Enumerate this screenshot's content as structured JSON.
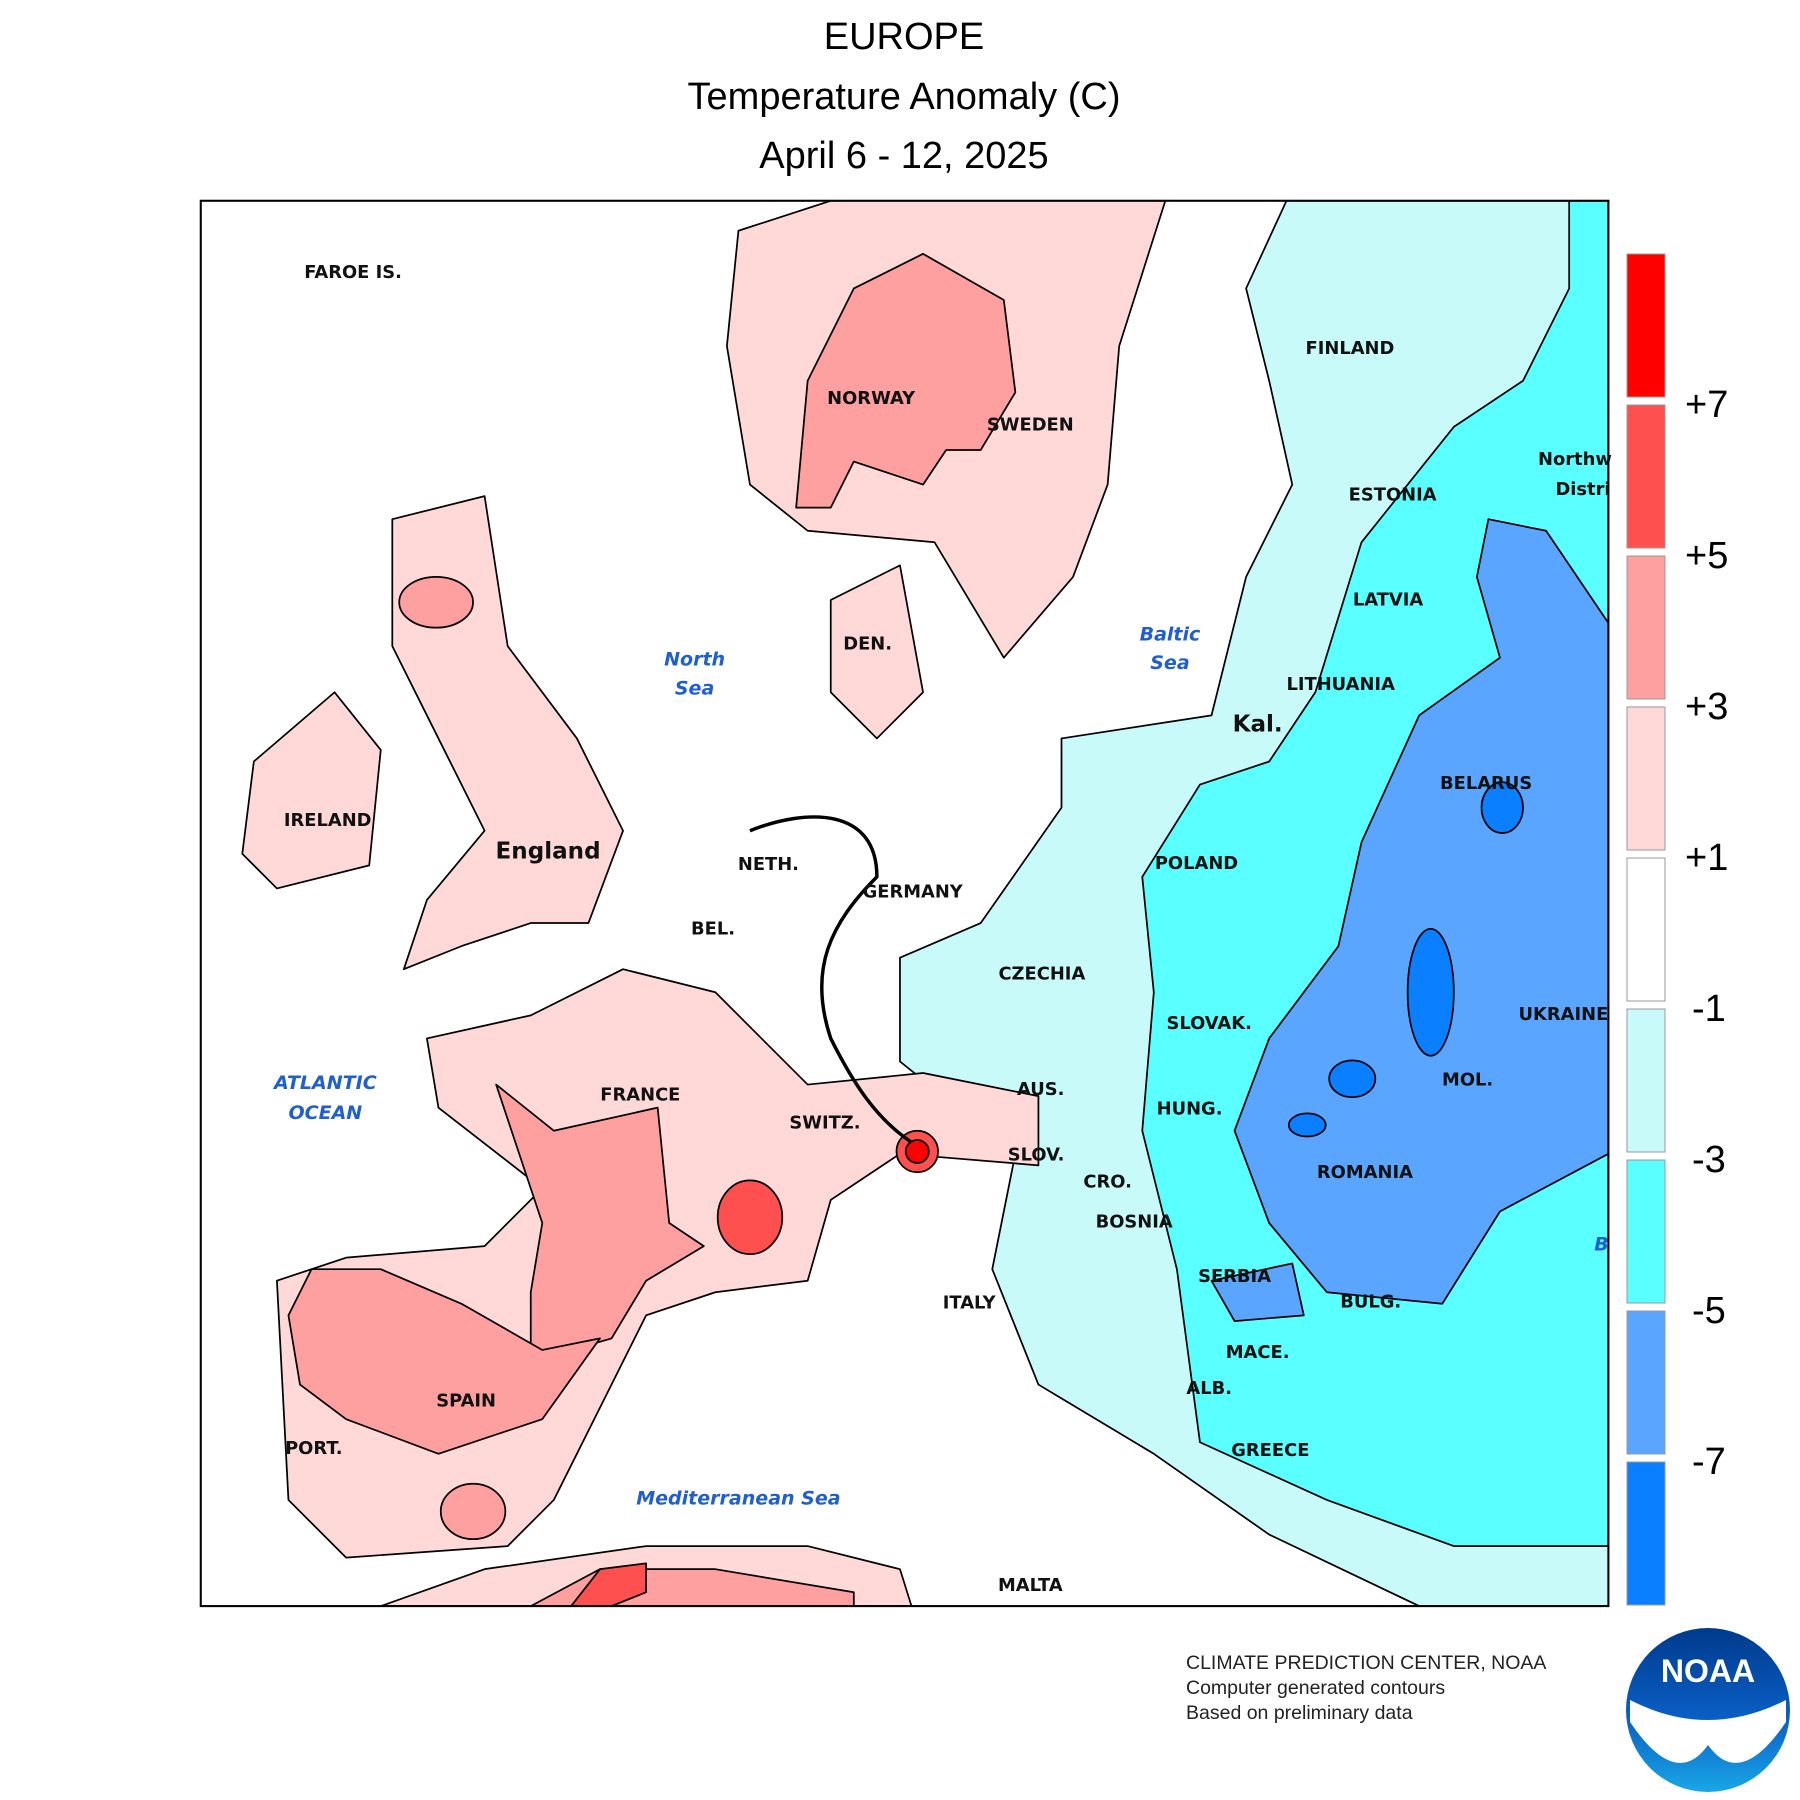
{
  "header": {
    "title": "EUROPE",
    "subtitle": "Temperature Anomaly (C)",
    "period": "April 6 - 12, 2025"
  },
  "map": {
    "labels": [
      "FAROE IS.",
      "FINLAND",
      "NORWAY",
      "SWEDEN",
      "Northw",
      "Distri",
      "ESTONIA",
      "LATVIA",
      "DEN.",
      "LITHUANIA",
      "Kal.",
      "BELARUS",
      "IRELAND",
      "England",
      "POLAND",
      "NETH.",
      "GERMANY",
      "BEL.",
      "CZECHIA",
      "UKRAINE",
      "SLOVAK.",
      "AUS.",
      "FRANCE",
      "MOL.",
      "HUNG.",
      "SWITZ.",
      "SLOV.",
      "ROMANIA",
      "CRO.",
      "BOSNIA",
      "SERBIA",
      "ITALY",
      "BULG.",
      "MACE.",
      "ALB.",
      "SPAIN",
      "PORT.",
      "GREECE",
      "MALTA"
    ],
    "seas": [
      "Baltic",
      "Sea",
      "North",
      "Sea",
      "ATLANTIC",
      "OCEAN",
      "Mediterranean Sea",
      "B"
    ]
  },
  "legend": {
    "labels": [
      "+7",
      "+5",
      "+3",
      "+1",
      "-1",
      "-3",
      "-5",
      "-7"
    ]
  },
  "footer": {
    "lines": [
      "CLIMATE PREDICTION CENTER, NOAA",
      "Computer generated contours",
      "Based on preliminary data"
    ],
    "logo": "NOAA"
  }
}
